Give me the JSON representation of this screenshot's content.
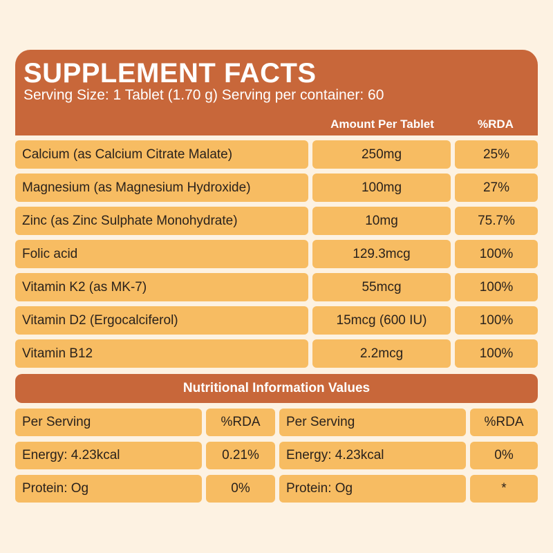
{
  "panel": {
    "title": "SUPPLEMENT FACTS",
    "subtitle": "Serving Size: 1 Tablet (1.70 g) Serving per container: 60",
    "col_amount": "Amount Per Tablet",
    "col_rda": "%RDA"
  },
  "nutrients": [
    {
      "name": "Calcium (as Calcium Citrate Malate)",
      "amount": "250mg",
      "rda": "25%"
    },
    {
      "name": "Magnesium (as Magnesium Hydroxide)",
      "amount": "100mg",
      "rda": "27%"
    },
    {
      "name": "Zinc (as Zinc Sulphate Monohydrate)",
      "amount": "10mg",
      "rda": "75.7%"
    },
    {
      "name": "Folic acid",
      "amount": "129.3mcg",
      "rda": "100%"
    },
    {
      "name": "Vitamin K2 (as MK-7)",
      "amount": "55mcg",
      "rda": "100%"
    },
    {
      "name": "Vitamin D2 (Ergocalciferol)",
      "amount": "15mcg (600 IU)",
      "rda": "100%"
    },
    {
      "name": "Vitamin B12",
      "amount": "2.2mcg",
      "rda": "100%"
    }
  ],
  "nutrition": {
    "section_title": "Nutritional Information Values",
    "left": [
      {
        "label": "Per Serving",
        "rda": "%RDA"
      },
      {
        "label": "Energy: 4.23kcal",
        "rda": "0.21%"
      },
      {
        "label": "Protein: Og",
        "rda": "0%"
      }
    ],
    "right": [
      {
        "label": "Per Serving",
        "rda": "%RDA"
      },
      {
        "label": "Energy: 4.23kcal",
        "rda": "0%"
      },
      {
        "label": "Protein: Og",
        "rda": "*"
      }
    ]
  },
  "colors": {
    "header": "#c8673a",
    "cell": "#f7bc62",
    "background": "#fdf2e2"
  }
}
